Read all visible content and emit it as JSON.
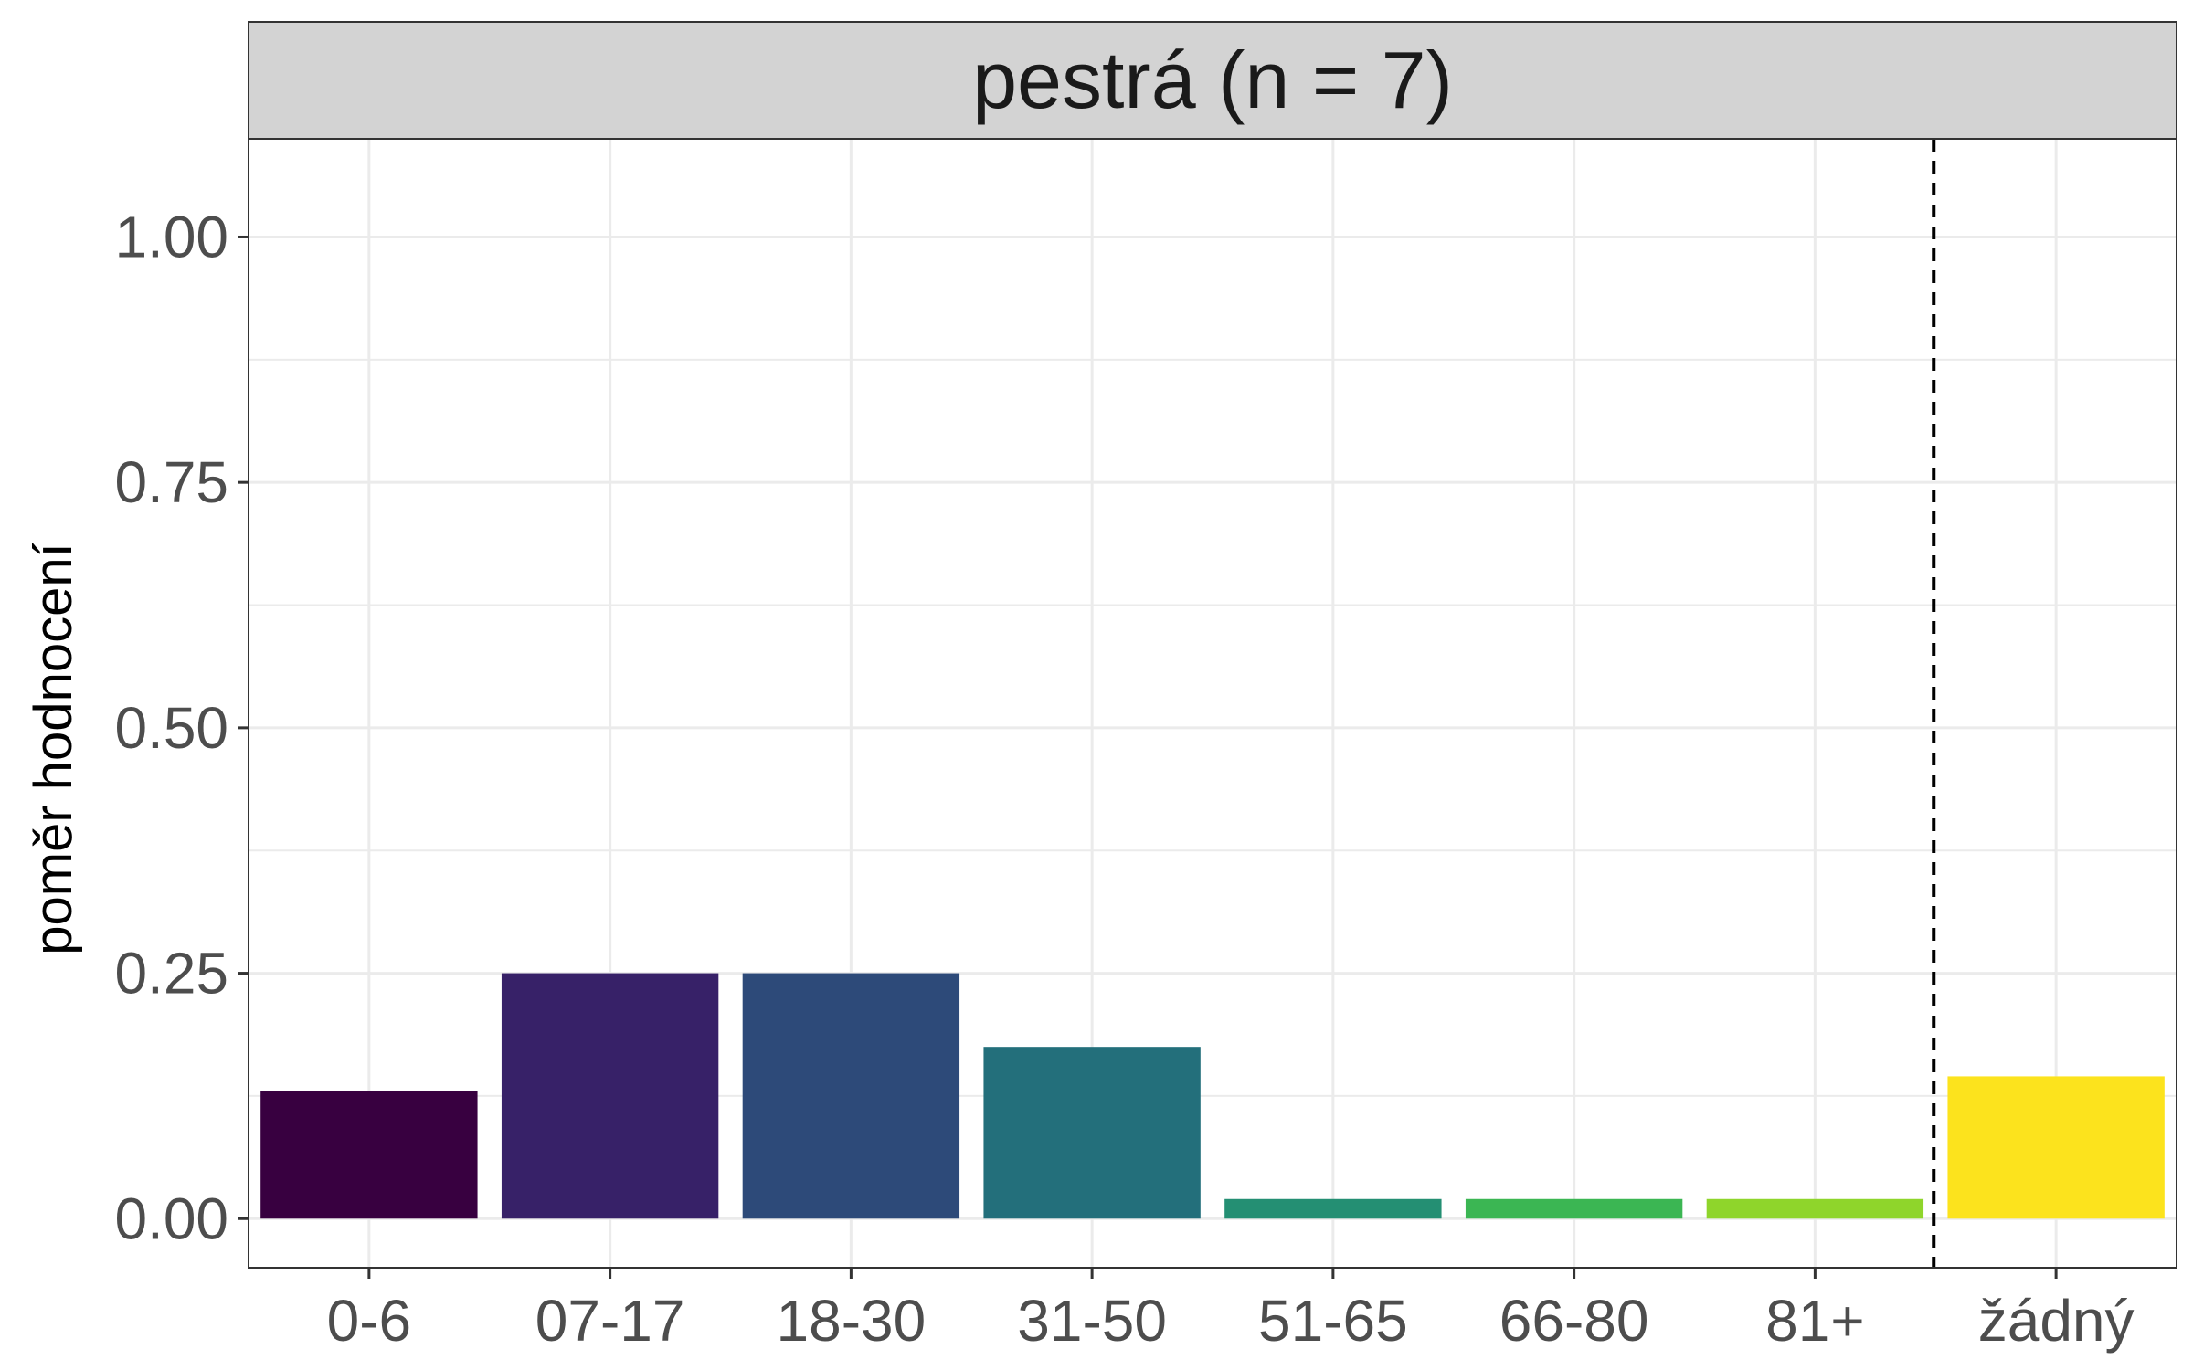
{
  "chart_data": {
    "type": "bar",
    "facet_title": "pestrá (n = 7)",
    "xlabel": "",
    "ylabel": "poměr hodnocení",
    "categories": [
      "0-6",
      "07-17",
      "18-30",
      "31-50",
      "51-65",
      "66-80",
      "81+",
      "žádný"
    ],
    "values": [
      0.13,
      0.25,
      0.25,
      0.175,
      0.02,
      0.02,
      0.02,
      0.145
    ],
    "colors": [
      "#380040",
      "#372168",
      "#2d4a79",
      "#236f7b",
      "#248f73",
      "#3bb653",
      "#8fd52b",
      "#fce31d"
    ],
    "ylim": [
      -0.05,
      1.1
    ],
    "yticks": [
      0.0,
      0.25,
      0.5,
      0.75,
      1.0
    ],
    "ytick_labels": [
      "0.00",
      "0.25",
      "0.50",
      "0.75",
      "1.00"
    ],
    "separator": {
      "after_category": "81+",
      "style": "dashed"
    },
    "grid": true,
    "legend": "none"
  }
}
